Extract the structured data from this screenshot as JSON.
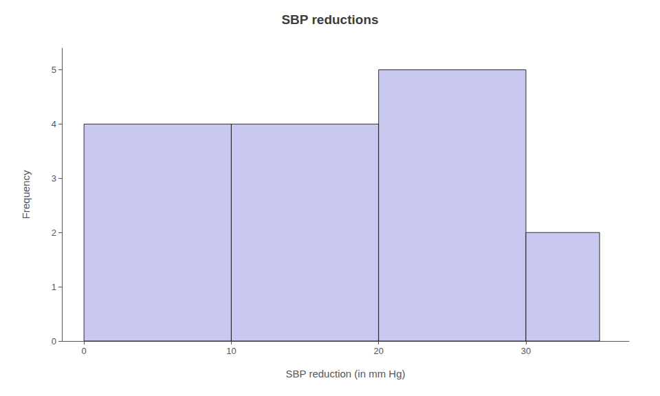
{
  "chart_data": {
    "type": "histogram",
    "title": "SBP reductions",
    "xlabel": "SBP reduction (in mm Hg)",
    "ylabel": "Frequency",
    "bins": [
      0,
      10,
      20,
      30,
      35
    ],
    "values": [
      4,
      4,
      5,
      2
    ],
    "color": "#c8c8f0",
    "xlim": [
      -1.5,
      37
    ],
    "ylim": [
      0,
      5.4
    ],
    "xticks": [
      0,
      10,
      20,
      30
    ],
    "yticks": [
      0,
      1,
      2,
      3,
      4,
      5
    ],
    "grid": false
  }
}
